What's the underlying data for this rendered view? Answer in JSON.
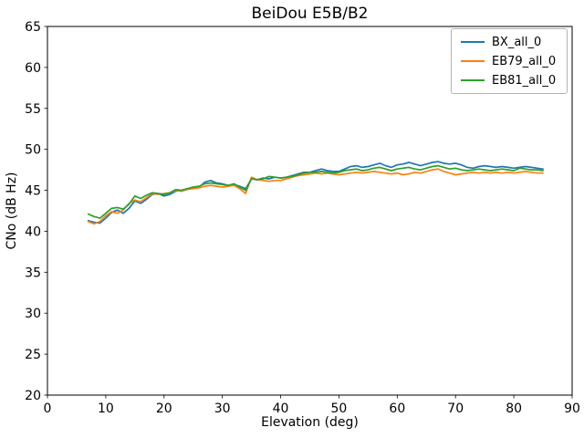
{
  "colors": {
    "background": "#ffffff",
    "axis": "#000000",
    "text": "#000000",
    "legend_border": "#b3b3b3"
  },
  "chart_data": {
    "type": "line",
    "title": "BeiDou E5B/B2",
    "xlabel": "Elevation (deg)",
    "ylabel": "CNo (dB Hz)",
    "xlim": [
      0,
      90
    ],
    "ylim": [
      20,
      65
    ],
    "xticks": [
      0,
      10,
      20,
      30,
      40,
      50,
      60,
      70,
      80,
      90
    ],
    "yticks": [
      20,
      25,
      30,
      35,
      40,
      45,
      50,
      55,
      60,
      65
    ],
    "grid": false,
    "legend_position": "upper right",
    "x": [
      7,
      8,
      9,
      10,
      11,
      12,
      13,
      14,
      15,
      16,
      17,
      18,
      19,
      20,
      21,
      22,
      23,
      24,
      25,
      26,
      27,
      28,
      29,
      30,
      31,
      32,
      33,
      34,
      35,
      36,
      37,
      38,
      39,
      40,
      41,
      42,
      43,
      44,
      45,
      46,
      47,
      48,
      49,
      50,
      51,
      52,
      53,
      54,
      55,
      56,
      57,
      58,
      59,
      60,
      61,
      62,
      63,
      64,
      65,
      66,
      67,
      68,
      69,
      70,
      71,
      72,
      73,
      74,
      75,
      76,
      77,
      78,
      79,
      80,
      81,
      82,
      83,
      84,
      85
    ],
    "series": [
      {
        "name": "BX_all_0",
        "color": "#1f77b4",
        "values": [
          41.3,
          41.1,
          41.0,
          41.6,
          42.3,
          42.6,
          42.2,
          42.8,
          43.7,
          43.4,
          43.9,
          44.5,
          44.6,
          44.3,
          44.5,
          44.9,
          45.0,
          45.2,
          45.3,
          45.4,
          46.0,
          46.2,
          45.9,
          45.8,
          45.6,
          45.7,
          45.5,
          45.2,
          46.4,
          46.3,
          46.5,
          46.4,
          46.6,
          46.5,
          46.6,
          46.8,
          47.0,
          47.2,
          47.2,
          47.4,
          47.6,
          47.4,
          47.3,
          47.3,
          47.6,
          47.9,
          48.0,
          47.8,
          47.9,
          48.1,
          48.3,
          48.0,
          47.8,
          48.1,
          48.2,
          48.4,
          48.2,
          48.0,
          48.2,
          48.4,
          48.5,
          48.3,
          48.2,
          48.3,
          48.1,
          47.8,
          47.7,
          47.9,
          48.0,
          47.9,
          47.8,
          47.9,
          47.8,
          47.7,
          47.8,
          47.9,
          47.8,
          47.7,
          47.6
        ]
      },
      {
        "name": "EB79_all_0",
        "color": "#ff7f0e",
        "values": [
          41.2,
          40.9,
          41.2,
          41.9,
          42.4,
          42.2,
          42.6,
          43.4,
          43.8,
          43.6,
          44.1,
          44.6,
          44.5,
          44.6,
          44.7,
          45.0,
          44.9,
          45.1,
          45.2,
          45.3,
          45.5,
          45.6,
          45.5,
          45.4,
          45.5,
          45.6,
          45.2,
          44.6,
          46.6,
          46.3,
          46.2,
          46.1,
          46.2,
          46.2,
          46.4,
          46.6,
          46.8,
          46.9,
          47.0,
          47.1,
          47.0,
          47.1,
          47.0,
          46.9,
          47.0,
          47.1,
          47.2,
          47.1,
          47.2,
          47.3,
          47.2,
          47.1,
          47.0,
          47.1,
          46.9,
          47.0,
          47.2,
          47.1,
          47.3,
          47.5,
          47.6,
          47.3,
          47.1,
          46.9,
          47.0,
          47.1,
          47.2,
          47.1,
          47.2,
          47.1,
          47.2,
          47.1,
          47.2,
          47.1,
          47.2,
          47.3,
          47.2,
          47.1,
          47.1
        ]
      },
      {
        "name": "EB81_all_0",
        "color": "#2ca02c",
        "values": [
          42.1,
          41.8,
          41.6,
          42.2,
          42.8,
          42.9,
          42.7,
          43.3,
          44.3,
          44.0,
          44.4,
          44.7,
          44.6,
          44.5,
          44.7,
          45.1,
          45.0,
          45.2,
          45.4,
          45.5,
          45.8,
          45.9,
          45.8,
          45.7,
          45.6,
          45.8,
          45.4,
          45.0,
          46.4,
          46.3,
          46.4,
          46.7,
          46.6,
          46.5,
          46.6,
          46.7,
          46.9,
          47.1,
          47.2,
          47.2,
          47.3,
          47.2,
          47.1,
          47.2,
          47.4,
          47.5,
          47.6,
          47.4,
          47.5,
          47.7,
          47.8,
          47.6,
          47.4,
          47.6,
          47.7,
          47.8,
          47.6,
          47.5,
          47.7,
          47.9,
          48.0,
          47.8,
          47.6,
          47.7,
          47.5,
          47.4,
          47.5,
          47.6,
          47.5,
          47.4,
          47.5,
          47.6,
          47.5,
          47.4,
          47.7,
          47.6,
          47.5,
          47.5,
          47.4
        ]
      }
    ]
  }
}
